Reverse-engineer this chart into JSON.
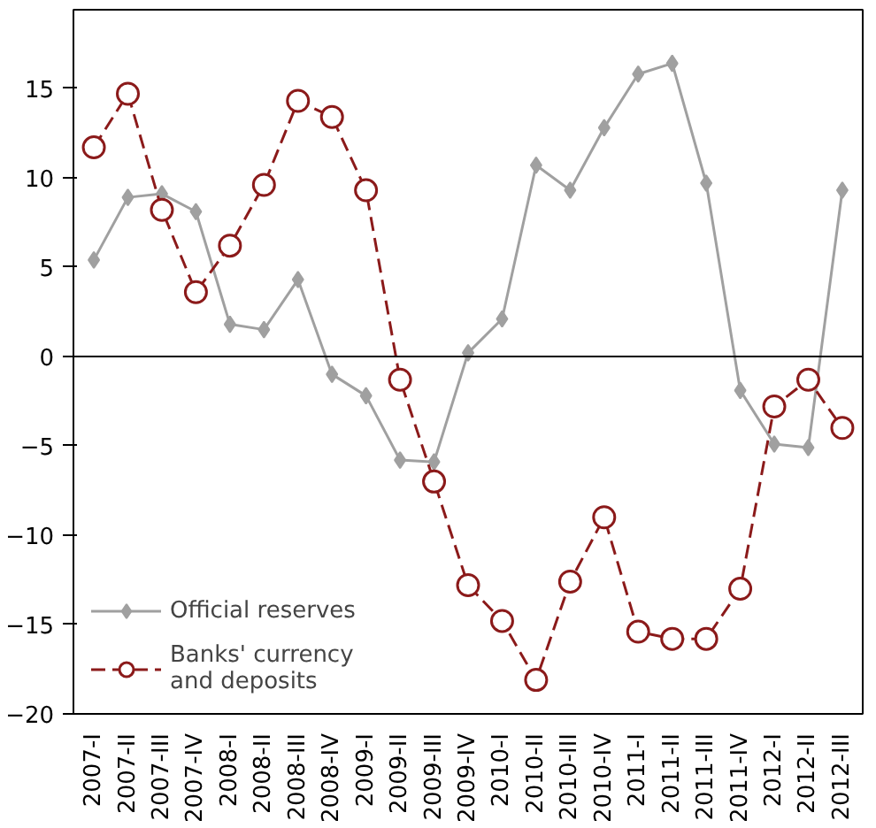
{
  "chart_data": {
    "type": "line",
    "categories": [
      "2007-I",
      "2007-II",
      "2007-III",
      "2007-IV",
      "2008-I",
      "2008-II",
      "2008-III",
      "2008-IV",
      "2009-I",
      "2009-II",
      "2009-III",
      "2009-IV",
      "2010-I",
      "2010-II",
      "2010-III",
      "2010-IV",
      "2011-I",
      "2011-II",
      "2011-III",
      "2011-IV",
      "2012-I",
      "2012-II",
      "2012-III"
    ],
    "series": [
      {
        "name": "Official reserves",
        "color": "#a0a0a0",
        "marker": "diamond",
        "line_style": "solid",
        "values": [
          5.4,
          8.9,
          9.1,
          8.1,
          1.8,
          1.5,
          4.3,
          -1.0,
          -2.2,
          -5.8,
          -5.9,
          0.2,
          2.1,
          10.7,
          9.3,
          12.8,
          15.8,
          16.4,
          9.7,
          -1.9,
          -4.9,
          -5.1,
          9.3
        ]
      },
      {
        "name": "Banks' currency and deposits",
        "color": "#8b1a1a",
        "marker": "circle",
        "line_style": "dashed",
        "values": [
          11.7,
          14.7,
          8.2,
          3.6,
          6.2,
          9.6,
          14.3,
          13.4,
          9.3,
          -1.3,
          -7.0,
          -12.8,
          -14.8,
          -18.1,
          -12.6,
          -9.0,
          -15.4,
          -15.8,
          -15.8,
          -13.0,
          -2.8,
          -1.3,
          -4.0
        ]
      }
    ],
    "ylim": [
      -20,
      19.4
    ],
    "yticks": [
      -20,
      -15,
      -10,
      -5,
      0,
      5,
      10,
      15
    ],
    "grid": false,
    "legend": "bottom left",
    "ref_lines": [
      {
        "axis": "y",
        "value": 0,
        "color": "#000000"
      }
    ]
  }
}
